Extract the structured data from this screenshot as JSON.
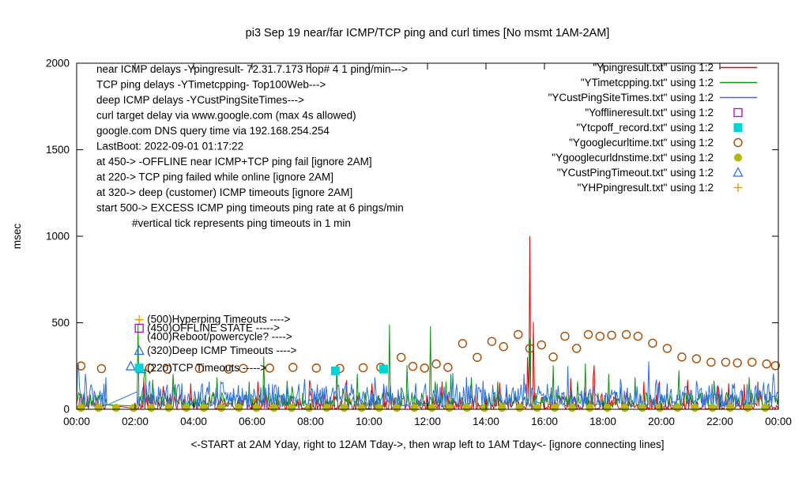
{
  "title": "pi3 Sep 19  near/far ICMP/TCP ping and curl times [No msmt 1AM-2AM]",
  "ylabel": "msec",
  "xlabel": "<-START at 2AM Yday, right to 12AM Tday->, then wrap left to 1AM Tday<- [ignore connecting lines]",
  "chart_data": {
    "type": "line",
    "x_tick_labels": [
      "00:00",
      "02:00",
      "04:00",
      "06:00",
      "08:00",
      "10:00",
      "12:00",
      "14:00",
      "16:00",
      "18:00",
      "20:00",
      "22:00",
      "00:00"
    ],
    "x_range_hours": [
      0,
      24
    ],
    "y_ticks": [
      0,
      500,
      1000,
      1500,
      2000
    ],
    "ylim": [
      0,
      2000
    ],
    "grid": false,
    "legend_position": "top-right-inside",
    "no_measurement_gap_hours": [
      1,
      2
    ],
    "legend": [
      {
        "label": "\"Ypingresult.txt\" using 1:2",
        "sample": "line",
        "color": "#e60000"
      },
      {
        "label": "\"YTimetcpping.txt\" using 1:2",
        "sample": "line",
        "color": "#109010"
      },
      {
        "label": "\"YCustPingSiteTimes.txt\" using 1:2",
        "sample": "line",
        "color": "#2f6fdf"
      },
      {
        "label": "\"Yofflineresult.txt\" using 1:2",
        "sample": "open-square",
        "color": "#c000c0"
      },
      {
        "label": "\"Ytcpoff_record.txt\" using 1:2",
        "sample": "filled-square",
        "color": "#00d4d4"
      },
      {
        "label": "\"Ygooglecurltime.txt\" using 1:2",
        "sample": "open-circle",
        "color": "#a64b00"
      },
      {
        "label": "\"Ygooglecurldnstime.txt\" using 1:2",
        "sample": "filled-circle",
        "color": "#b8b800"
      },
      {
        "label": "\"YCustPingTimeout.txt\" using 1:2",
        "sample": "open-triangle",
        "color": "#2f6fdf"
      },
      {
        "label": "\"YHPpingresult.txt\" using 1:2",
        "sample": "plus",
        "color": "#e8a000"
      }
    ],
    "line_series": [
      {
        "name": "near-icmp-ping",
        "color": "#e60000",
        "seed": 11,
        "baseline_msec": [
          2,
          95
        ],
        "noise_pow": 3,
        "spikes": [
          [
            2.3,
            180
          ],
          [
            3.9,
            150
          ],
          [
            6.2,
            160
          ],
          [
            8.0,
            140
          ],
          [
            10.1,
            150
          ],
          [
            12.5,
            160
          ],
          [
            15.42,
            300
          ],
          [
            15.5,
            1000
          ],
          [
            15.62,
            505
          ],
          [
            16.9,
            180
          ],
          [
            17.7,
            255
          ],
          [
            19.4,
            160
          ],
          [
            20.9,
            170
          ],
          [
            22.3,
            150
          ],
          [
            23.3,
            160
          ]
        ]
      },
      {
        "name": "tcp-ping",
        "color": "#109010",
        "seed": 23,
        "baseline_msec": [
          18,
          100
        ],
        "noise_pow": 2.2,
        "spikes": [
          [
            2.1,
            490
          ],
          [
            2.35,
            240
          ],
          [
            3.3,
            205
          ],
          [
            4.8,
            185
          ],
          [
            5.9,
            160
          ],
          [
            6.4,
            305
          ],
          [
            7.2,
            165
          ],
          [
            8.9,
            255
          ],
          [
            9.6,
            205
          ],
          [
            10.7,
            490
          ],
          [
            11.3,
            255
          ],
          [
            12.1,
            480
          ],
          [
            12.8,
            205
          ],
          [
            13.5,
            185
          ],
          [
            14.4,
            160
          ],
          [
            15.5,
            405
          ],
          [
            16.3,
            255
          ],
          [
            17.4,
            265
          ],
          [
            18.2,
            205
          ],
          [
            19.1,
            185
          ],
          [
            20.6,
            225
          ],
          [
            21.8,
            165
          ],
          [
            23.0,
            185
          ]
        ]
      },
      {
        "name": "deep-icmp-ping",
        "color": "#2f6fdf",
        "seed": 37,
        "baseline_msec": [
          12,
          150
        ],
        "noise_pow": 1.6,
        "spikes": [
          [
            0.3,
            205
          ],
          [
            1.0,
            185
          ],
          [
            2.5,
            165
          ],
          [
            3.6,
            150
          ],
          [
            5.0,
            155
          ],
          [
            6.7,
            145
          ],
          [
            7.8,
            175
          ],
          [
            9.2,
            150
          ],
          [
            10.2,
            185
          ],
          [
            11.6,
            150
          ],
          [
            13.0,
            145
          ],
          [
            13.9,
            165
          ],
          [
            15.3,
            205
          ],
          [
            16.8,
            250
          ],
          [
            18.6,
            175
          ],
          [
            19.9,
            150
          ],
          [
            21.2,
            165
          ],
          [
            22.5,
            150
          ],
          [
            23.5,
            155
          ]
        ]
      }
    ],
    "scatter_series": [
      {
        "name": "google-curl-time",
        "marker": "open-circle",
        "color": "#a64b00",
        "points": [
          [
            0.15,
            250
          ],
          [
            0.85,
            235
          ],
          [
            2.5,
            238
          ],
          [
            3.1,
            232
          ],
          [
            4.2,
            236
          ],
          [
            5.2,
            232
          ],
          [
            5.7,
            236
          ],
          [
            6.6,
            238
          ],
          [
            7.4,
            242
          ],
          [
            8.2,
            238
          ],
          [
            9.0,
            236
          ],
          [
            9.8,
            240
          ],
          [
            10.4,
            242
          ],
          [
            11.1,
            300
          ],
          [
            11.5,
            248
          ],
          [
            11.9,
            238
          ],
          [
            12.3,
            262
          ],
          [
            12.7,
            242
          ],
          [
            13.2,
            380
          ],
          [
            13.7,
            300
          ],
          [
            14.2,
            392
          ],
          [
            14.6,
            362
          ],
          [
            15.1,
            432
          ],
          [
            15.5,
            352
          ],
          [
            15.9,
            372
          ],
          [
            16.3,
            302
          ],
          [
            16.7,
            422
          ],
          [
            17.1,
            352
          ],
          [
            17.5,
            432
          ],
          [
            17.9,
            422
          ],
          [
            18.3,
            428
          ],
          [
            18.8,
            432
          ],
          [
            19.2,
            422
          ],
          [
            19.7,
            382
          ],
          [
            20.2,
            352
          ],
          [
            20.7,
            302
          ],
          [
            21.2,
            292
          ],
          [
            21.7,
            272
          ],
          [
            22.2,
            272
          ],
          [
            22.6,
            268
          ],
          [
            23.1,
            272
          ],
          [
            23.6,
            262
          ],
          [
            23.9,
            252
          ]
        ]
      },
      {
        "name": "google-curl-dns-time",
        "marker": "filled-circle",
        "color": "#b8b800",
        "points_spec": {
          "start": 0.15,
          "end": 23.9,
          "step": 0.6,
          "value": 8
        }
      },
      {
        "name": "tcp-offline-record",
        "marker": "filled-square",
        "color": "#00d4d4",
        "points": [
          [
            8.85,
            222
          ],
          [
            10.5,
            232
          ]
        ]
      },
      {
        "name": "cust-ping-timeout",
        "marker": "open-triangle",
        "color": "#2f6fdf",
        "points": [
          [
            1.85,
            248
          ],
          [
            2.2,
            232
          ]
        ]
      },
      {
        "name": "offline-result",
        "marker": "open-square",
        "color": "#c000c0",
        "points": []
      },
      {
        "name": "hp-ping-result",
        "marker": "plus",
        "color": "#e8a000",
        "points": []
      }
    ],
    "info_annotations": [
      "near ICMP delays -Ypingresult- 72.31.7.173 hop# 4 1 ping/min--->",
      "TCP ping delays -YTimetcpping- Top100Web--->",
      "deep ICMP delays -YCustPingSiteTimes--->",
      "curl target delay via www.google.com (max 4s allowed)",
      "google.com DNS query time via 192.168.254.254",
      "LastBoot: 2022-09-01 01:17:22",
      "at 450-> -OFFLINE near ICMP+TCP ping fail [ignore 2AM]",
      "at 220-> TCP ping failed while online [ignore 2AM]",
      "at 320-> deep (customer) ICMP timeouts [ignore 2AM]",
      "start 500-> EXCESS ICMP ping timeouts ping rate at 6 pings/min",
      "#vertical tick represents ping timeouts in 1 min"
    ],
    "level_annotations": [
      {
        "marker": "plus",
        "color": "#e8a000",
        "text": "(500)Hyperping Timeouts ---->",
        "msec": 500,
        "hour": 2.14
      },
      {
        "marker": "open-square",
        "color": "#c000c0",
        "text": "(450)OFFLINE STATE ----->",
        "msec": 450,
        "hour": 2.14
      },
      {
        "marker": "none",
        "color": "#000000",
        "text": "(400)Reboot/powercycle? ---->",
        "msec": 400,
        "hour": 2.14
      },
      {
        "marker": "open-triangle",
        "color": "#2f6fdf",
        "text": "(320)Deep ICMP Timeouts ---->",
        "msec": 320,
        "hour": 2.14
      },
      {
        "marker": "filled-square",
        "color": "#00d4d4",
        "text": "(220)TCP Timeouts ----->",
        "msec": 220,
        "hour": 2.14
      }
    ]
  }
}
